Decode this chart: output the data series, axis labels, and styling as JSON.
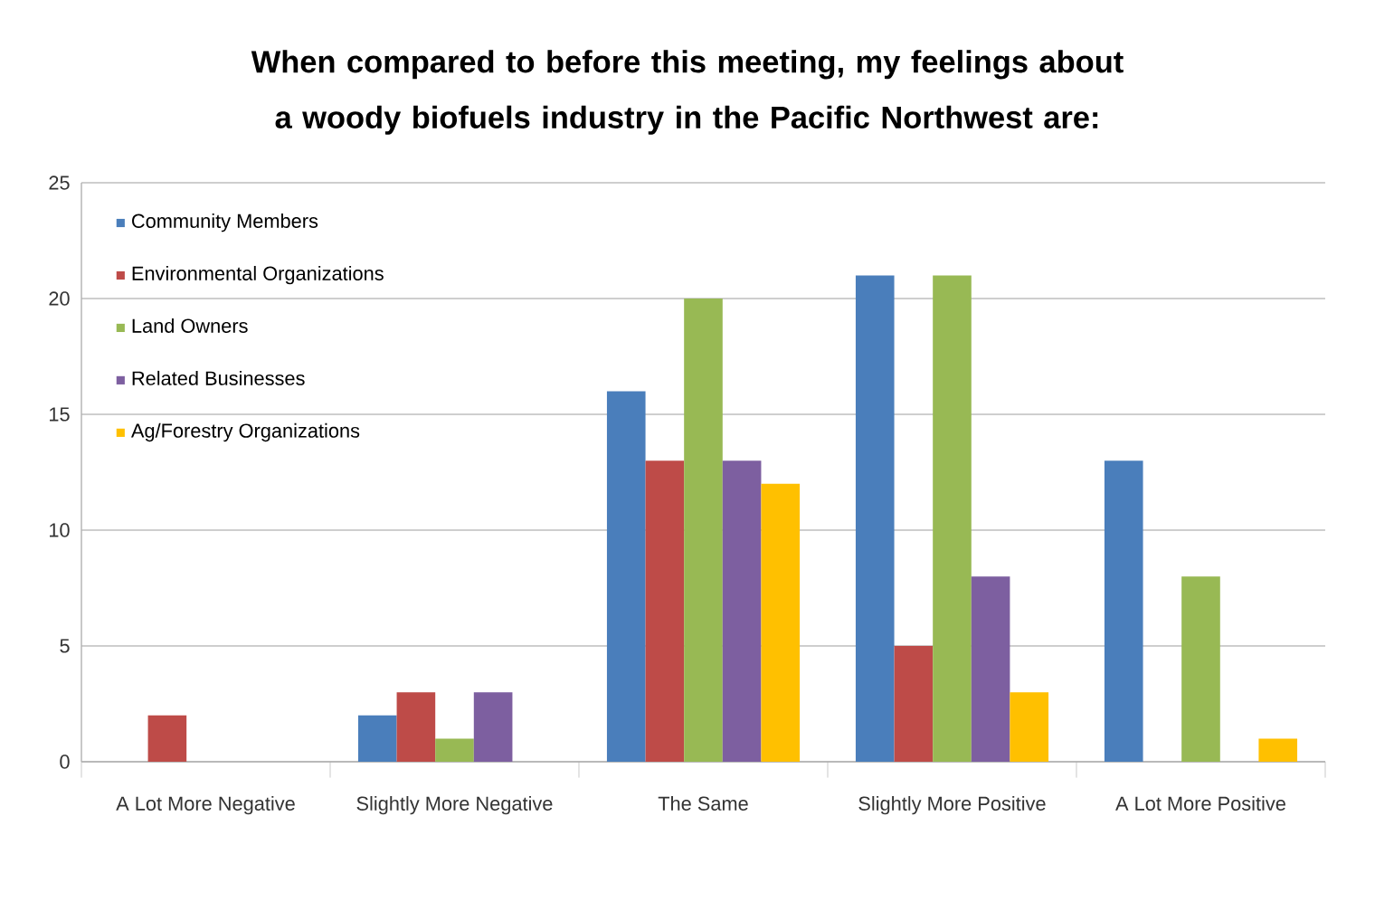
{
  "chart_data": {
    "type": "bar",
    "title": "When compared to before this meeting, my feelings about a woody biofuels industry in the Pacific Northwest are:",
    "categories": [
      "A Lot More Negative",
      "Slightly More Negative",
      "The Same",
      "Slightly More Positive",
      "A Lot More Positive"
    ],
    "series": [
      {
        "name": "Community Members",
        "color": "#4a7ebb",
        "values": [
          0,
          2,
          16,
          21,
          13
        ]
      },
      {
        "name": "Environmental Organizations",
        "color": "#be4b48",
        "values": [
          2,
          3,
          13,
          5,
          0
        ]
      },
      {
        "name": "Land Owners",
        "color": "#98b954",
        "values": [
          0,
          1,
          20,
          21,
          8
        ]
      },
      {
        "name": "Related Businesses",
        "color": "#7d5fa0",
        "values": [
          0,
          3,
          13,
          8,
          0
        ]
      },
      {
        "name": "Ag/Forestry Organizations",
        "color": "#ffc000",
        "values": [
          0,
          0,
          12,
          3,
          1
        ]
      }
    ],
    "ylim": [
      0,
      25
    ],
    "yticks": [
      0,
      5,
      10,
      15,
      20,
      25
    ],
    "grid": "y",
    "legend": "top left"
  }
}
